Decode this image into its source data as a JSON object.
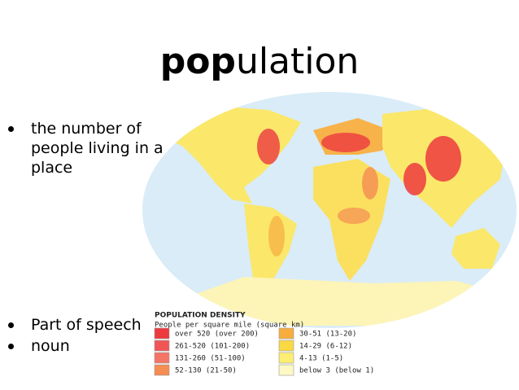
{
  "title": {
    "bold": "pop",
    "rest": "ulation"
  },
  "bullets_top": [
    "the number of people living in a place"
  ],
  "bullets_bottom": [
    "Part of speech",
    "noun"
  ],
  "legend": {
    "title": "POPULATION DENSITY",
    "subtitle": "People per square mile (square km)",
    "items": [
      {
        "label": "over 520 (over 200)",
        "color": "#ec3a3e"
      },
      {
        "label": "261-520 (101-200)",
        "color": "#f05656"
      },
      {
        "label": "131-260 (51-100)",
        "color": "#f47466"
      },
      {
        "label": "52-130 (21-50)",
        "color": "#f58c52"
      },
      {
        "label": "30-51 (13-20)",
        "color": "#f7ad3e"
      },
      {
        "label": "14-29 (6-12)",
        "color": "#fbd944"
      },
      {
        "label": "4-13 (1-5)",
        "color": "#fcee72"
      },
      {
        "label": "below 3 (below 1)",
        "color": "#fdf8c4"
      }
    ]
  }
}
